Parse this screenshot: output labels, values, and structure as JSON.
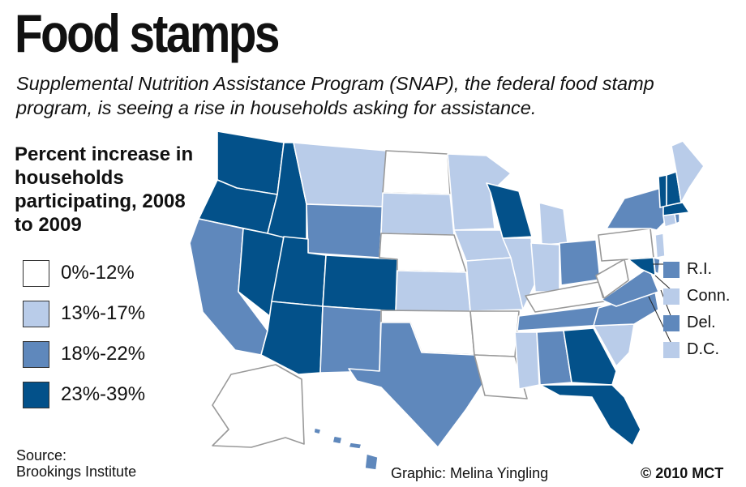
{
  "title": "Food stamps",
  "subtitle": "Supplemental Nutrition Assistance Program (SNAP), the federal food stamp program, is seeing a rise in households asking for assistance.",
  "legend": {
    "title": "Percent increase in households participating, 2008 to 2009",
    "items": [
      {
        "label": "0%-12%",
        "color": "#ffffff"
      },
      {
        "label": "13%-17%",
        "color": "#b9cce9"
      },
      {
        "label": "18%-22%",
        "color": "#5f88bc"
      },
      {
        "label": "23%-39%",
        "color": "#03518a"
      }
    ]
  },
  "small_states": [
    {
      "label": "R.I.",
      "color": "#5f88bc"
    },
    {
      "label": "Conn.",
      "color": "#b9cce9"
    },
    {
      "label": "Del.",
      "color": "#5f88bc"
    },
    {
      "label": "D.C.",
      "color": "#b9cce9"
    }
  ],
  "source": {
    "label": "Source:",
    "name": "Brookings Institute"
  },
  "credit": "Graphic: Melina Yingling",
  "copyright": "© 2010 MCT"
}
